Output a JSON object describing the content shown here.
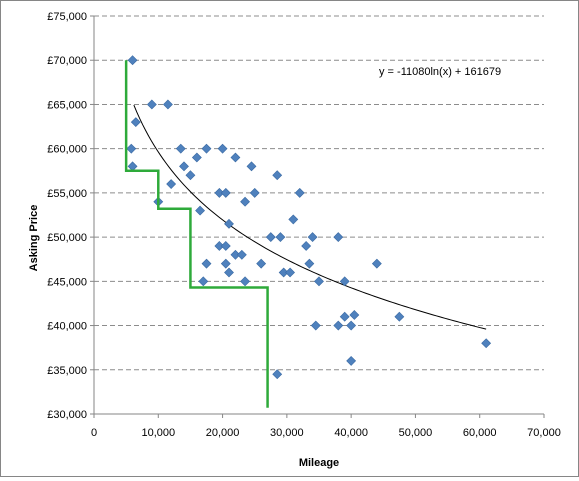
{
  "chart_data": {
    "type": "scatter",
    "xlabel": "Mileage",
    "ylabel": "Asking Price",
    "xlim": [
      0,
      70000
    ],
    "ylim": [
      30000,
      75000
    ],
    "x_ticks": [
      0,
      10000,
      20000,
      30000,
      40000,
      50000,
      60000,
      70000
    ],
    "y_ticks": [
      30000,
      35000,
      40000,
      45000,
      50000,
      55000,
      60000,
      65000,
      70000,
      75000
    ],
    "x_tick_labels": [
      "0",
      "10,000",
      "20,000",
      "30,000",
      "40,000",
      "50,000",
      "60,000",
      "70,000"
    ],
    "y_tick_labels": [
      "£30,000",
      "£35,000",
      "£40,000",
      "£45,000",
      "£50,000",
      "£55,000",
      "£60,000",
      "£65,000",
      "£70,000",
      "£75,000"
    ],
    "grid": {
      "horizontal": true,
      "vertical": false,
      "style": "dashed"
    },
    "legend": "none",
    "series": [
      {
        "marker": "diamond",
        "color": "#4f81bd",
        "points": [
          [
            6000,
            70000
          ],
          [
            6500,
            63000
          ],
          [
            5800,
            60000
          ],
          [
            6000,
            58000
          ],
          [
            9000,
            65000
          ],
          [
            11500,
            65000
          ],
          [
            13500,
            60000
          ],
          [
            12000,
            56000
          ],
          [
            10000,
            54000
          ],
          [
            14000,
            58000
          ],
          [
            15000,
            57000
          ],
          [
            16000,
            59000
          ],
          [
            17500,
            60000
          ],
          [
            20000,
            60000
          ],
          [
            22000,
            59000
          ],
          [
            24500,
            58000
          ],
          [
            16500,
            53000
          ],
          [
            19500,
            55000
          ],
          [
            20500,
            55000
          ],
          [
            25000,
            55000
          ],
          [
            23500,
            54000
          ],
          [
            21000,
            51500
          ],
          [
            19500,
            49000
          ],
          [
            20500,
            49000
          ],
          [
            17500,
            47000
          ],
          [
            20500,
            47000
          ],
          [
            21000,
            46000
          ],
          [
            22000,
            48000
          ],
          [
            23000,
            48000
          ],
          [
            17000,
            45000
          ],
          [
            23500,
            45000
          ],
          [
            26000,
            47000
          ],
          [
            28500,
            57000
          ],
          [
            27500,
            50000
          ],
          [
            29000,
            50000
          ],
          [
            29500,
            46000
          ],
          [
            30500,
            46000
          ],
          [
            31000,
            52000
          ],
          [
            32000,
            55000
          ],
          [
            33000,
            49000
          ],
          [
            34000,
            50000
          ],
          [
            33500,
            47000
          ],
          [
            35000,
            45000
          ],
          [
            34500,
            40000
          ],
          [
            28500,
            34500
          ],
          [
            38000,
            50000
          ],
          [
            39000,
            45000
          ],
          [
            38000,
            40000
          ],
          [
            39000,
            41000
          ],
          [
            40000,
            40000
          ],
          [
            40500,
            41200
          ],
          [
            40000,
            36000
          ],
          [
            44000,
            47000
          ],
          [
            47500,
            41000
          ],
          [
            61000,
            38000
          ]
        ]
      }
    ],
    "trendline": {
      "type": "logarithmic",
      "a": -11080,
      "b": 161679,
      "x_range": [
        6200,
        61000
      ],
      "color": "#000000",
      "label": "y = -11080ln(x) + 161679"
    },
    "step_line": {
      "color": "#2eaa3a",
      "points": [
        [
          5000,
          70000
        ],
        [
          5000,
          57500
        ],
        [
          10000,
          57500
        ],
        [
          10000,
          53200
        ],
        [
          15000,
          53200
        ],
        [
          15000,
          44300
        ],
        [
          27000,
          44300
        ],
        [
          27000,
          30700
        ]
      ]
    }
  }
}
